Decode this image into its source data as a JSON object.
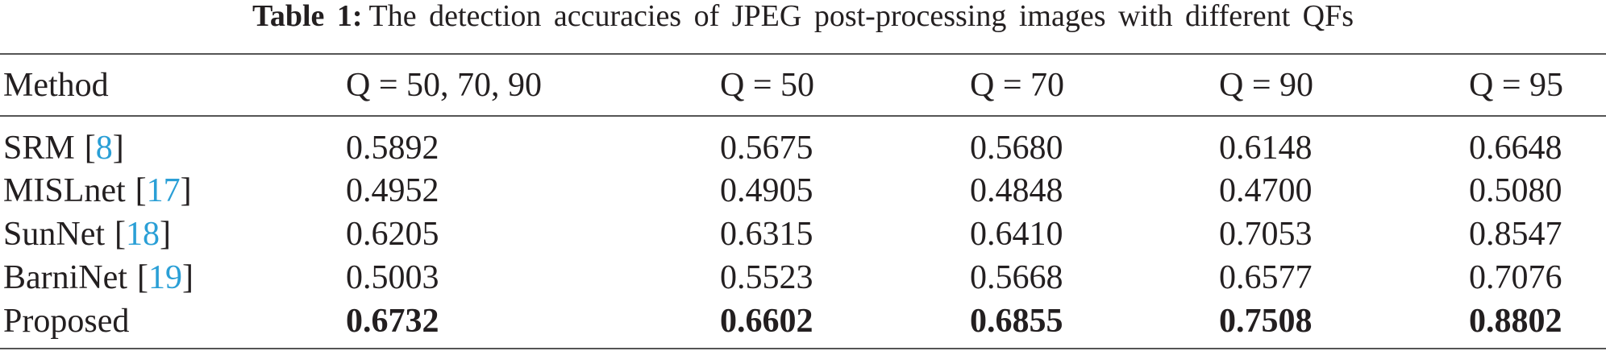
{
  "caption": {
    "label": "Table 1:",
    "text": "The detection accuracies of JPEG post-processing images with different QFs"
  },
  "table": {
    "header": [
      "Method",
      "Q = 50, 70, 90",
      "Q = 50",
      "Q = 70",
      "Q = 90",
      "Q = 95"
    ],
    "rows": [
      {
        "method": "SRM",
        "ref": "8",
        "values": [
          "0.5892",
          "0.5675",
          "0.5680",
          "0.6148",
          "0.6648"
        ],
        "bold": false
      },
      {
        "method": "MISLnet",
        "ref": "17",
        "values": [
          "0.4952",
          "0.4905",
          "0.4848",
          "0.4700",
          "0.5080"
        ],
        "bold": false
      },
      {
        "method": "SunNet",
        "ref": "18",
        "values": [
          "0.6205",
          "0.6315",
          "0.6410",
          "0.7053",
          "0.8547"
        ],
        "bold": false
      },
      {
        "method": "BarniNet",
        "ref": "19",
        "values": [
          "0.5003",
          "0.5523",
          "0.5668",
          "0.6577",
          "0.7076"
        ],
        "bold": false
      },
      {
        "method": "Proposed",
        "ref": null,
        "values": [
          "0.6732",
          "0.6602",
          "0.6855",
          "0.7508",
          "0.8802"
        ],
        "bold": true
      }
    ]
  }
}
